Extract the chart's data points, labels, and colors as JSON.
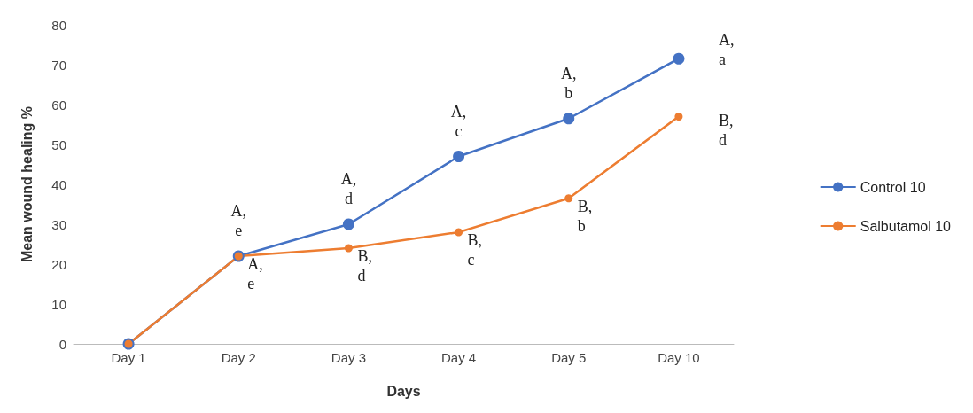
{
  "chart_data": {
    "type": "line",
    "xlabel": "Days",
    "ylabel": "Mean wound healing %",
    "categories": [
      "Day 1",
      "Day 2",
      "Day 3",
      "Day 4",
      "Day 5",
      "Day 10"
    ],
    "series": [
      {
        "name": "Control 10",
        "color": "#4472c4",
        "values": [
          0,
          22,
          30,
          47,
          56.5,
          71.5
        ]
      },
      {
        "name": "Salbutamol 10",
        "color": "#ed7d31",
        "values": [
          0,
          22,
          24,
          28,
          36.5,
          57
        ]
      }
    ],
    "ylim": [
      0,
      80
    ],
    "yticks": [
      0,
      10,
      20,
      30,
      40,
      50,
      60,
      70,
      80
    ],
    "grid": false,
    "legend": "right",
    "marker": "circle",
    "annotations": [
      {
        "text": "A,\ne",
        "x": "Day 2",
        "y": 22
      },
      {
        "text": "A,\ne",
        "x": "Day 2",
        "y": 22
      },
      {
        "text": "A,\nd",
        "x": "Day 3",
        "y": 30
      },
      {
        "text": "B,\nd",
        "x": "Day 3",
        "y": 24
      },
      {
        "text": "A,\nc",
        "x": "Day 4",
        "y": 47
      },
      {
        "text": "B,\nc",
        "x": "Day 4",
        "y": 28
      },
      {
        "text": "A,\nb",
        "x": "Day 5",
        "y": 56.5
      },
      {
        "text": "B,\nb",
        "x": "Day 5",
        "y": 36.5
      },
      {
        "text": "A,\na",
        "x": "Day 10",
        "y": 71.5
      },
      {
        "text": "B,\nd",
        "x": "Day 10",
        "y": 57
      }
    ]
  }
}
